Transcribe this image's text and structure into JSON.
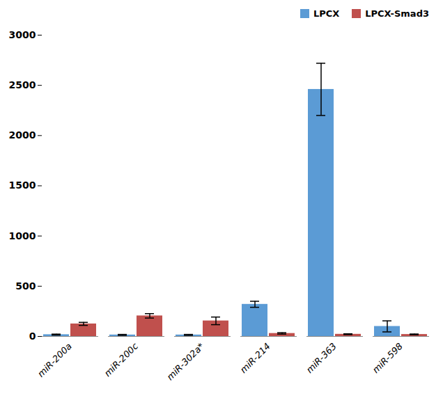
{
  "chart_data": {
    "type": "bar",
    "categories": [
      "miR-200a",
      "miR-200c",
      "miR-302a*",
      "miR-214",
      "miR-363",
      "miR-598"
    ],
    "series": [
      {
        "name": "LPCX",
        "color": "#5B9BD5",
        "values": [
          18,
          15,
          15,
          320,
          2460,
          100
        ],
        "errors": [
          5,
          5,
          5,
          30,
          260,
          55
        ]
      },
      {
        "name": "LPCX-Smad3",
        "color": "#C0504D",
        "values": [
          125,
          205,
          155,
          30,
          22,
          20
        ],
        "errors": [
          15,
          22,
          38,
          7,
          4,
          4
        ]
      }
    ],
    "ylim": [
      0,
      3000
    ],
    "yticks": [
      0,
      500,
      1000,
      1500,
      2000,
      2500,
      3000
    ],
    "legend": "upper right",
    "grid": false
  }
}
